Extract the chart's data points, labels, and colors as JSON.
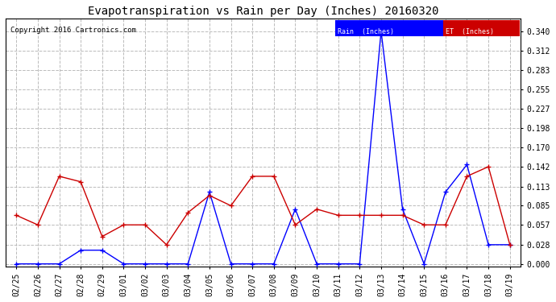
{
  "title": "Evapotranspiration vs Rain per Day (Inches) 20160320",
  "copyright": "Copyright 2016 Cartronics.com",
  "x_labels": [
    "02/25",
    "02/26",
    "02/27",
    "02/28",
    "02/29",
    "03/01",
    "03/02",
    "03/03",
    "03/04",
    "03/05",
    "03/06",
    "03/07",
    "03/08",
    "03/09",
    "03/10",
    "03/11",
    "03/12",
    "03/13",
    "03/14",
    "03/15",
    "03/16",
    "03/17",
    "03/18",
    "03/19"
  ],
  "rain_values": [
    0.0,
    0.0,
    0.0,
    0.02,
    0.02,
    0.0,
    0.0,
    0.0,
    0.0,
    0.105,
    0.0,
    0.0,
    0.0,
    0.08,
    0.0,
    0.0,
    0.0,
    0.34,
    0.08,
    0.0,
    0.105,
    0.145,
    0.028,
    0.028
  ],
  "et_values": [
    0.071,
    0.057,
    0.128,
    0.12,
    0.04,
    0.057,
    0.057,
    0.028,
    0.075,
    0.1,
    0.085,
    0.128,
    0.128,
    0.057,
    0.08,
    0.071,
    0.071,
    0.071,
    0.071,
    0.057,
    0.057,
    0.128,
    0.142,
    0.028
  ],
  "rain_color": "#0000ff",
  "et_color": "#cc0000",
  "ylim_min": -0.004,
  "ylim_max": 0.358,
  "yticks": [
    0.0,
    0.028,
    0.057,
    0.085,
    0.113,
    0.142,
    0.17,
    0.198,
    0.227,
    0.255,
    0.283,
    0.312,
    0.34
  ],
  "background_color": "#ffffff",
  "grid_color": "#bbbbbb",
  "legend_rain_bg": "#0000ff",
  "legend_et_bg": "#cc0000",
  "legend_rain_text": "Rain  (Inches)",
  "legend_et_text": "ET  (Inches)",
  "title_fontsize": 10,
  "copyright_fontsize": 6.5,
  "tick_fontsize": 7,
  "marker": "+"
}
